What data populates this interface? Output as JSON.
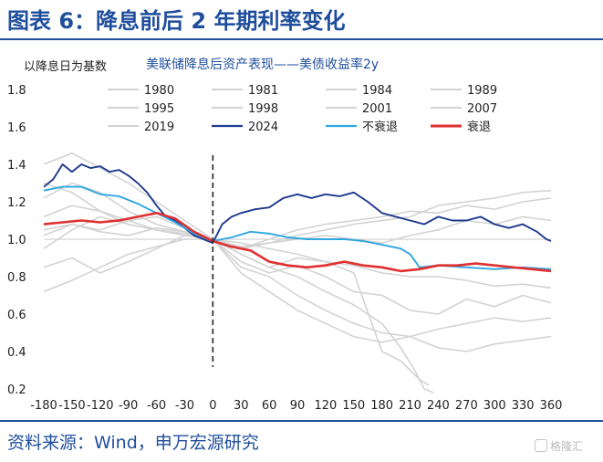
{
  "header": {
    "title": "图表 6：降息前后 2 年期利率变化"
  },
  "source": {
    "text": "资料来源：Wind，申万宏源研究"
  },
  "watermark": {
    "text": "格隆汇"
  },
  "chart_data": {
    "type": "line",
    "title": "美联储降息后资产表现——美债收益率2y",
    "ylabel": "以降息日为基数",
    "xlabel": "",
    "xlim": [
      -180,
      360
    ],
    "ylim": [
      0.2,
      1.8
    ],
    "x_ticks": [
      -180,
      -150,
      -120,
      -90,
      -60,
      -30,
      0,
      30,
      60,
      90,
      120,
      150,
      180,
      210,
      240,
      270,
      300,
      330,
      360
    ],
    "y_ticks": [
      "0.2",
      "0.4",
      "0.6",
      "0.8",
      "1.0",
      "1.2",
      "1.4",
      "1.6",
      "1.8"
    ],
    "reference_lines": {
      "baseline_y": 1.0,
      "event_x": 0
    },
    "grid": false,
    "legend_position": "top",
    "series": [
      {
        "name": "1980",
        "color": "#d3d3d3",
        "points": [
          [
            -180,
            0.85
          ],
          [
            -150,
            0.9
          ],
          [
            -120,
            0.82
          ],
          [
            -90,
            0.88
          ],
          [
            -60,
            0.95
          ],
          [
            -30,
            1.02
          ],
          [
            0,
            1.0
          ],
          [
            30,
            0.92
          ],
          [
            60,
            0.85
          ],
          [
            90,
            0.8
          ],
          [
            120,
            0.72
          ],
          [
            150,
            0.65
          ],
          [
            180,
            0.55
          ],
          [
            200,
            0.42
          ],
          [
            215,
            0.3
          ],
          [
            225,
            0.2
          ],
          [
            235,
            0.18
          ]
        ]
      },
      {
        "name": "1981",
        "color": "#d3d3d3",
        "points": [
          [
            -180,
            0.95
          ],
          [
            -150,
            1.05
          ],
          [
            -120,
            1.12
          ],
          [
            -90,
            1.08
          ],
          [
            -60,
            1.05
          ],
          [
            -30,
            1.02
          ],
          [
            0,
            1.0
          ],
          [
            30,
            0.88
          ],
          [
            60,
            0.82
          ],
          [
            90,
            0.86
          ],
          [
            120,
            0.8
          ],
          [
            150,
            0.72
          ],
          [
            180,
            0.7
          ],
          [
            210,
            0.62
          ],
          [
            240,
            0.6
          ],
          [
            270,
            0.68
          ],
          [
            300,
            0.64
          ],
          [
            330,
            0.7
          ],
          [
            360,
            0.66
          ]
        ]
      },
      {
        "name": "1984",
        "color": "#d3d3d3",
        "points": [
          [
            -180,
            0.72
          ],
          [
            -150,
            0.78
          ],
          [
            -120,
            0.85
          ],
          [
            -90,
            0.92
          ],
          [
            -60,
            0.96
          ],
          [
            -30,
            1.0
          ],
          [
            0,
            1.0
          ],
          [
            30,
            0.95
          ],
          [
            60,
            0.98
          ],
          [
            90,
            1.02
          ],
          [
            120,
            1.05
          ],
          [
            150,
            1.08
          ],
          [
            180,
            1.1
          ],
          [
            210,
            1.12
          ],
          [
            240,
            1.18
          ],
          [
            270,
            1.2
          ],
          [
            300,
            1.22
          ],
          [
            330,
            1.25
          ],
          [
            360,
            1.26
          ]
        ]
      },
      {
        "name": "1989",
        "color": "#d3d3d3",
        "points": [
          [
            -180,
            1.4
          ],
          [
            -150,
            1.46
          ],
          [
            -120,
            1.38
          ],
          [
            -90,
            1.3
          ],
          [
            -60,
            1.2
          ],
          [
            -30,
            1.1
          ],
          [
            0,
            1.0
          ],
          [
            30,
            0.98
          ],
          [
            60,
            0.95
          ],
          [
            90,
            0.92
          ],
          [
            120,
            0.88
          ],
          [
            150,
            0.86
          ],
          [
            180,
            0.82
          ],
          [
            210,
            0.8
          ],
          [
            240,
            0.8
          ],
          [
            270,
            0.78
          ],
          [
            300,
            0.75
          ],
          [
            330,
            0.76
          ],
          [
            360,
            0.74
          ]
        ]
      },
      {
        "name": "1995",
        "color": "#d3d3d3",
        "points": [
          [
            -180,
            1.22
          ],
          [
            -150,
            1.3
          ],
          [
            -120,
            1.25
          ],
          [
            -90,
            1.15
          ],
          [
            -60,
            1.08
          ],
          [
            -30,
            1.04
          ],
          [
            0,
            1.0
          ],
          [
            30,
            0.96
          ],
          [
            60,
            0.98
          ],
          [
            90,
            1.0
          ],
          [
            120,
            1.02
          ],
          [
            150,
            1.0
          ],
          [
            180,
            0.98
          ],
          [
            210,
            1.02
          ],
          [
            240,
            1.05
          ],
          [
            270,
            1.1
          ],
          [
            300,
            1.08
          ],
          [
            330,
            1.12
          ],
          [
            360,
            1.1
          ]
        ]
      },
      {
        "name": "1998",
        "color": "#d3d3d3",
        "points": [
          [
            -180,
            1.02
          ],
          [
            -150,
            1.08
          ],
          [
            -120,
            1.05
          ],
          [
            -90,
            1.1
          ],
          [
            -60,
            1.12
          ],
          [
            -30,
            1.06
          ],
          [
            0,
            1.0
          ],
          [
            30,
            0.95
          ],
          [
            60,
            1.0
          ],
          [
            90,
            1.05
          ],
          [
            120,
            1.08
          ],
          [
            150,
            1.1
          ],
          [
            180,
            1.12
          ],
          [
            210,
            1.15
          ],
          [
            240,
            1.14
          ],
          [
            270,
            1.18
          ],
          [
            300,
            1.16
          ],
          [
            330,
            1.2
          ],
          [
            360,
            1.22
          ]
        ]
      },
      {
        "name": "2001",
        "color": "#d3d3d3",
        "points": [
          [
            -180,
            1.12
          ],
          [
            -150,
            1.18
          ],
          [
            -120,
            1.15
          ],
          [
            -90,
            1.1
          ],
          [
            -60,
            1.05
          ],
          [
            -30,
            1.02
          ],
          [
            0,
            1.0
          ],
          [
            30,
            0.82
          ],
          [
            60,
            0.72
          ],
          [
            90,
            0.62
          ],
          [
            120,
            0.55
          ],
          [
            150,
            0.48
          ],
          [
            180,
            0.45
          ],
          [
            210,
            0.48
          ],
          [
            240,
            0.42
          ],
          [
            270,
            0.4
          ],
          [
            300,
            0.44
          ],
          [
            330,
            0.46
          ],
          [
            360,
            0.48
          ]
        ]
      },
      {
        "name": "2007",
        "color": "#d3d3d3",
        "points": [
          [
            -180,
            1.05
          ],
          [
            -150,
            1.08
          ],
          [
            -120,
            1.04
          ],
          [
            -90,
            1.02
          ],
          [
            -60,
            1.06
          ],
          [
            -30,
            1.04
          ],
          [
            0,
            1.0
          ],
          [
            30,
            0.85
          ],
          [
            60,
            0.8
          ],
          [
            90,
            0.7
          ],
          [
            120,
            0.62
          ],
          [
            150,
            0.55
          ],
          [
            180,
            0.5
          ],
          [
            210,
            0.48
          ],
          [
            240,
            0.52
          ],
          [
            270,
            0.55
          ],
          [
            300,
            0.58
          ],
          [
            330,
            0.56
          ],
          [
            360,
            0.58
          ]
        ]
      },
      {
        "name": "2019",
        "color": "#d3d3d3",
        "points": [
          [
            -180,
            1.3
          ],
          [
            -150,
            1.25
          ],
          [
            -120,
            1.15
          ],
          [
            -90,
            1.08
          ],
          [
            -60,
            1.05
          ],
          [
            -30,
            1.03
          ],
          [
            0,
            1.0
          ],
          [
            30,
            0.92
          ],
          [
            60,
            0.85
          ],
          [
            90,
            0.9
          ],
          [
            120,
            0.88
          ],
          [
            150,
            0.82
          ],
          [
            180,
            0.4
          ],
          [
            200,
            0.35
          ],
          [
            210,
            0.3
          ],
          [
            220,
            0.25
          ],
          [
            230,
            0.22
          ]
        ]
      },
      {
        "name": "2024",
        "color": "#1f3a8f",
        "points": [
          [
            -180,
            1.28
          ],
          [
            -170,
            1.32
          ],
          [
            -160,
            1.4
          ],
          [
            -150,
            1.36
          ],
          [
            -140,
            1.4
          ],
          [
            -130,
            1.38
          ],
          [
            -120,
            1.39
          ],
          [
            -110,
            1.36
          ],
          [
            -100,
            1.37
          ],
          [
            -90,
            1.34
          ],
          [
            -80,
            1.3
          ],
          [
            -70,
            1.25
          ],
          [
            -60,
            1.18
          ],
          [
            -50,
            1.12
          ],
          [
            -40,
            1.1
          ],
          [
            -30,
            1.06
          ],
          [
            -20,
            1.02
          ],
          [
            -10,
            1.0
          ],
          [
            0,
            0.98
          ],
          [
            10,
            1.08
          ],
          [
            20,
            1.12
          ],
          [
            30,
            1.14
          ],
          [
            45,
            1.16
          ],
          [
            60,
            1.17
          ],
          [
            75,
            1.22
          ],
          [
            90,
            1.24
          ],
          [
            105,
            1.22
          ],
          [
            120,
            1.24
          ],
          [
            135,
            1.23
          ],
          [
            150,
            1.25
          ],
          [
            165,
            1.2
          ],
          [
            180,
            1.14
          ],
          [
            195,
            1.12
          ],
          [
            210,
            1.1
          ],
          [
            225,
            1.08
          ],
          [
            240,
            1.12
          ],
          [
            255,
            1.1
          ],
          [
            270,
            1.1
          ],
          [
            285,
            1.12
          ],
          [
            300,
            1.08
          ],
          [
            315,
            1.06
          ],
          [
            330,
            1.08
          ],
          [
            345,
            1.04
          ],
          [
            355,
            1.0
          ],
          [
            360,
            0.99
          ]
        ]
      },
      {
        "name": "不衰退",
        "color": "#2ea6e0",
        "points": [
          [
            -180,
            1.26
          ],
          [
            -160,
            1.28
          ],
          [
            -140,
            1.28
          ],
          [
            -120,
            1.24
          ],
          [
            -100,
            1.23
          ],
          [
            -80,
            1.19
          ],
          [
            -60,
            1.14
          ],
          [
            -40,
            1.09
          ],
          [
            -20,
            1.03
          ],
          [
            0,
            0.99
          ],
          [
            20,
            1.01
          ],
          [
            40,
            1.04
          ],
          [
            60,
            1.03
          ],
          [
            80,
            1.01
          ],
          [
            100,
            1.0
          ],
          [
            120,
            1.0
          ],
          [
            140,
            1.0
          ],
          [
            160,
            0.99
          ],
          [
            180,
            0.97
          ],
          [
            200,
            0.95
          ],
          [
            210,
            0.92
          ],
          [
            220,
            0.85
          ],
          [
            240,
            0.86
          ],
          [
            270,
            0.85
          ],
          [
            300,
            0.84
          ],
          [
            330,
            0.85
          ],
          [
            360,
            0.84
          ]
        ]
      },
      {
        "name": "衰退",
        "color": "#e03030",
        "points": [
          [
            -180,
            1.08
          ],
          [
            -160,
            1.09
          ],
          [
            -140,
            1.1
          ],
          [
            -120,
            1.09
          ],
          [
            -100,
            1.1
          ],
          [
            -80,
            1.12
          ],
          [
            -60,
            1.14
          ],
          [
            -40,
            1.11
          ],
          [
            -20,
            1.04
          ],
          [
            0,
            0.99
          ],
          [
            20,
            0.96
          ],
          [
            40,
            0.94
          ],
          [
            60,
            0.88
          ],
          [
            80,
            0.86
          ],
          [
            100,
            0.85
          ],
          [
            120,
            0.86
          ],
          [
            140,
            0.88
          ],
          [
            160,
            0.86
          ],
          [
            180,
            0.85
          ],
          [
            200,
            0.83
          ],
          [
            220,
            0.84
          ],
          [
            240,
            0.86
          ],
          [
            260,
            0.86
          ],
          [
            280,
            0.87
          ],
          [
            300,
            0.86
          ],
          [
            320,
            0.85
          ],
          [
            340,
            0.84
          ],
          [
            360,
            0.83
          ]
        ]
      }
    ]
  }
}
